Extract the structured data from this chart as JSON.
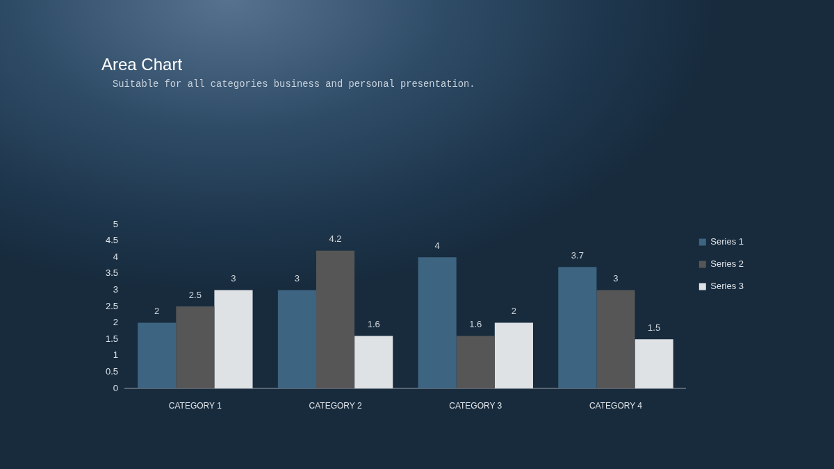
{
  "chart_data": {
    "type": "bar",
    "title": "Area Chart",
    "subtitle": "Suitable for all categories business and personal presentation.",
    "categories": [
      "CATEGORY 1",
      "CATEGORY 2",
      "CATEGORY 3",
      "CATEGORY 4"
    ],
    "series": [
      {
        "name": "Series 1",
        "color": "#3d6480",
        "values": [
          2,
          3,
          4,
          3.7
        ]
      },
      {
        "name": "Series 2",
        "color": "#565656",
        "values": [
          2.5,
          4.2,
          1.6,
          3
        ]
      },
      {
        "name": "Series 3",
        "color": "#dfe2e5",
        "values": [
          3,
          1.6,
          2,
          1.5
        ]
      }
    ],
    "ylim": [
      0,
      5
    ],
    "yticks": [
      0,
      0.5,
      1,
      1.5,
      2,
      2.5,
      3,
      3.5,
      4,
      4.5,
      5
    ],
    "grid": false,
    "legend": "right",
    "data_labels": true
  }
}
